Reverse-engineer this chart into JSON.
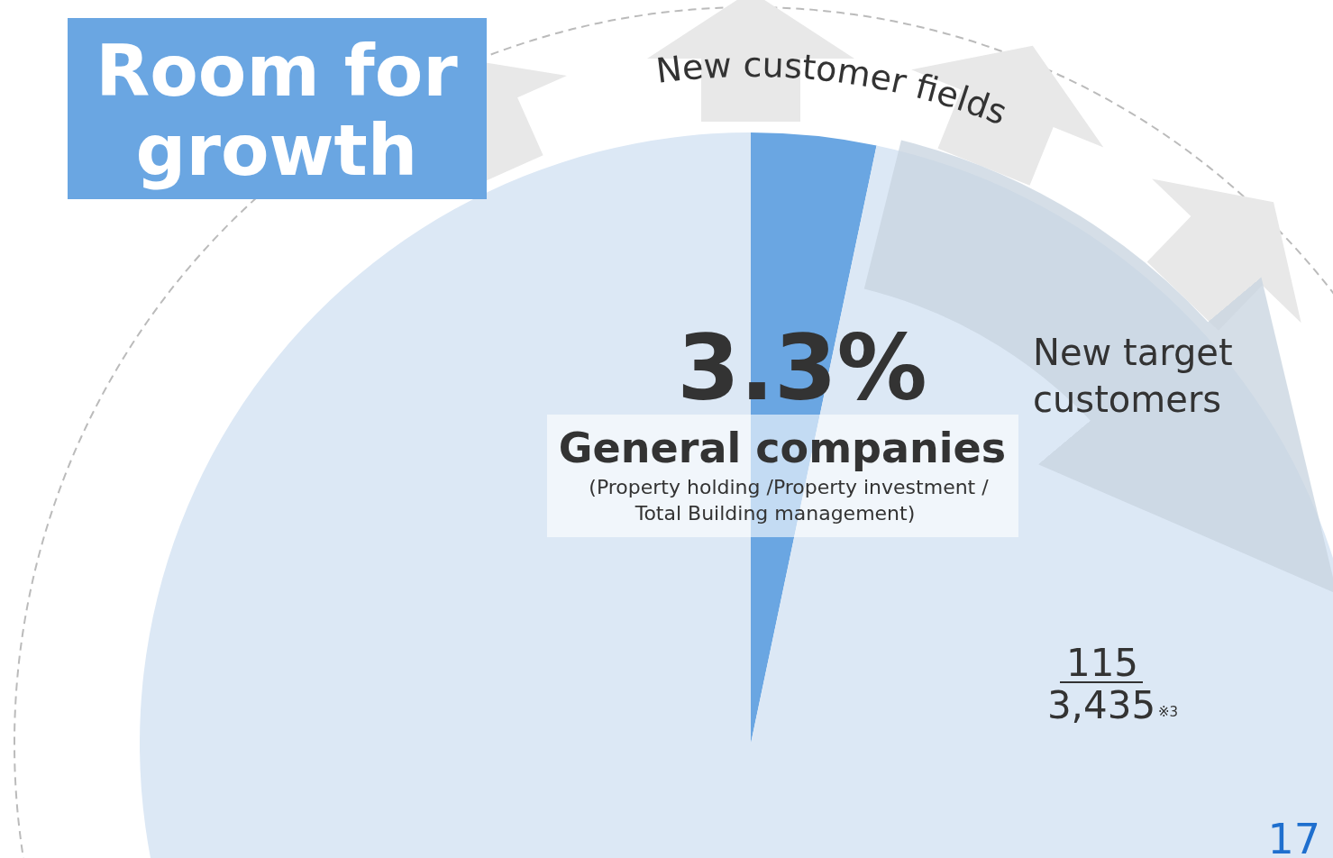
{
  "chart_data": {
    "type": "pie",
    "title": "Room for growth",
    "categories": [
      "General companies",
      null
    ],
    "values": [
      3.3,
      96.7
    ],
    "colors": [
      "#6aa6e2",
      "#dce8f5"
    ],
    "value_labels": [
      "3.3%",
      null
    ],
    "annotations": [
      "(Property holding /Property investment /",
      "Total Building management)",
      "New customer fields",
      "New target customers",
      "115",
      "3,435",
      "※3",
      "17"
    ]
  }
}
